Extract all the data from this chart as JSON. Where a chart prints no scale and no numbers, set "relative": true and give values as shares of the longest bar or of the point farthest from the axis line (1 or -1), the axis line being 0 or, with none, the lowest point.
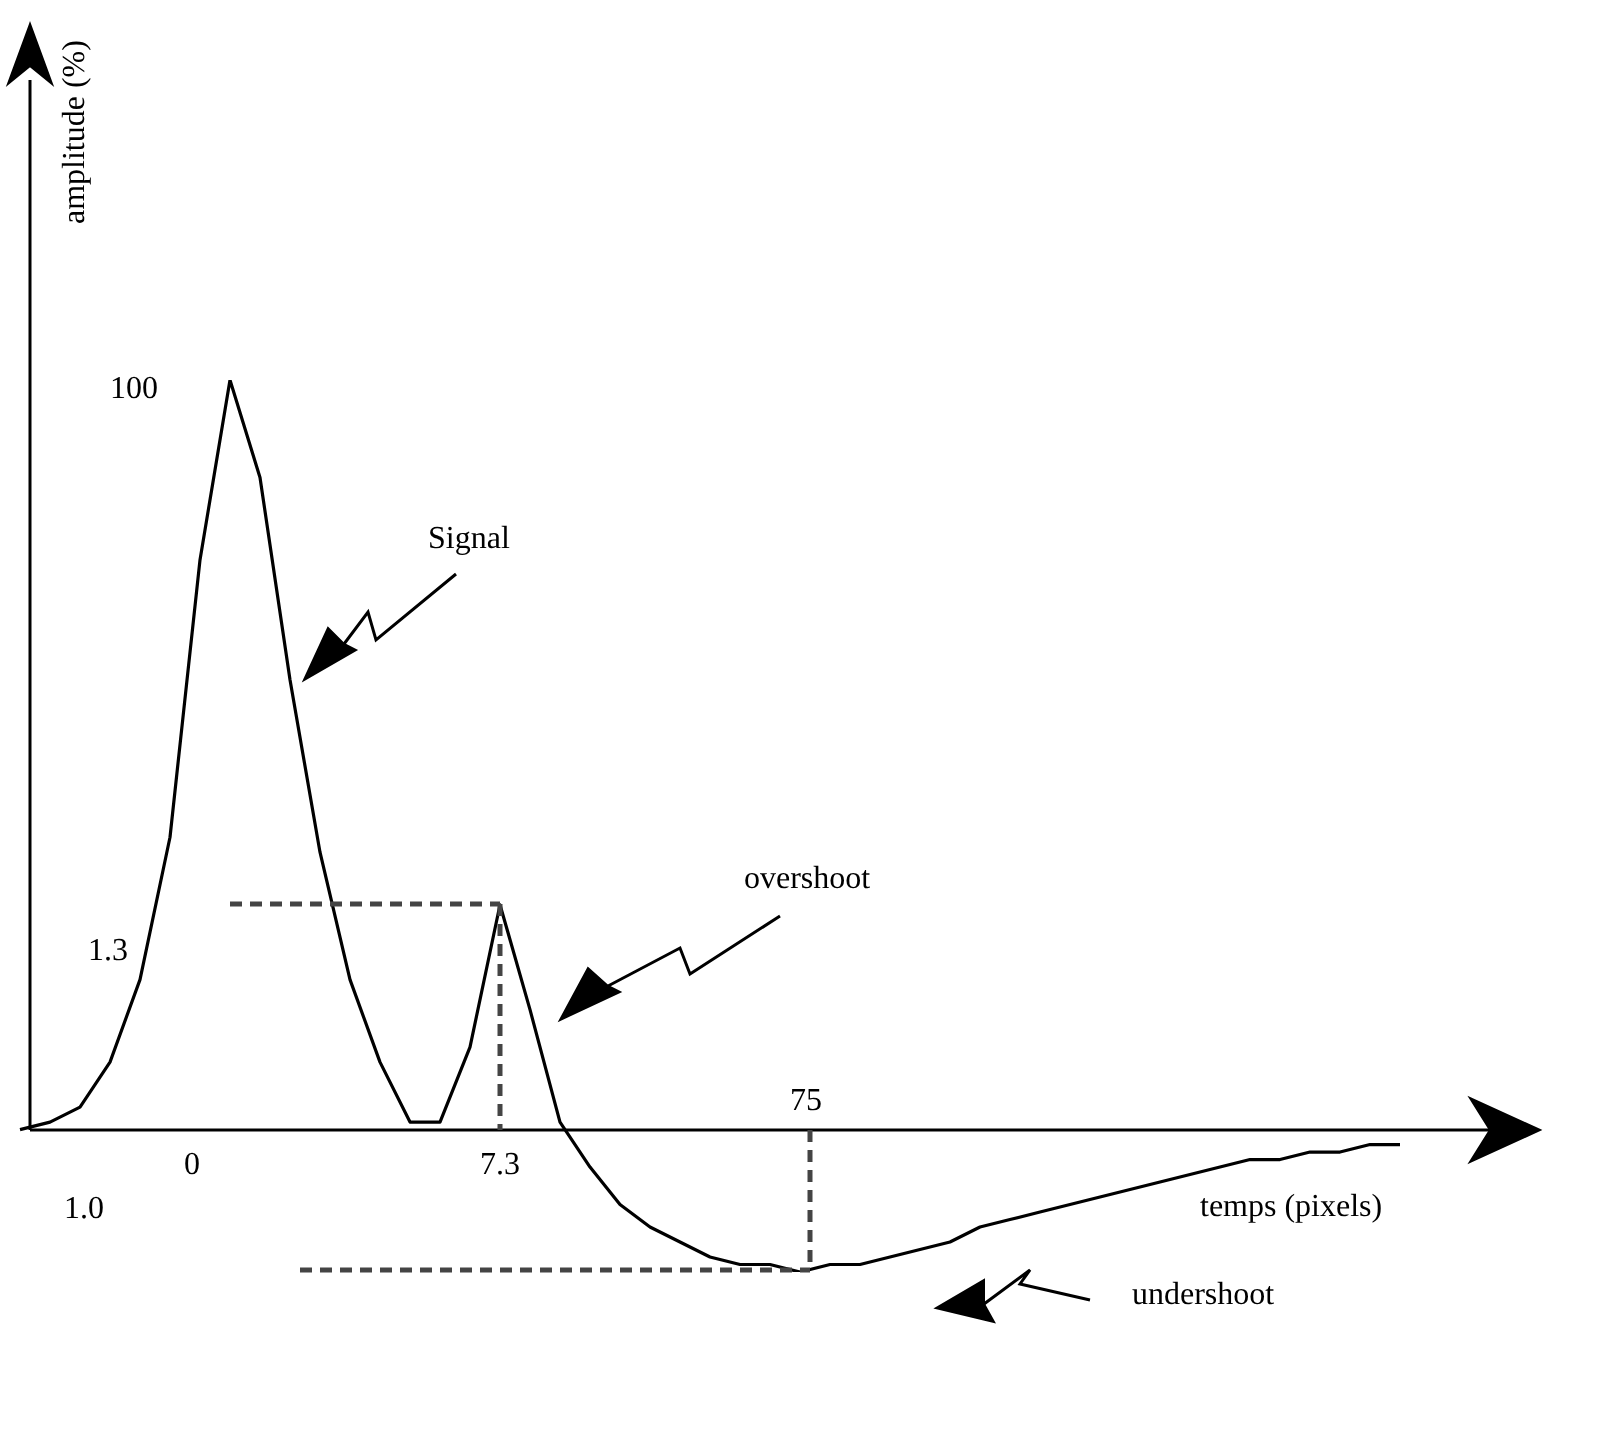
{
  "chart_data": {
    "type": "line",
    "relative": true,
    "xlabel": "temps (pixels)",
    "ylabel": "amplitude (%)",
    "categories": [
      null,
      null,
      null,
      null,
      null,
      null,
      null,
      null,
      null,
      null,
      null,
      null,
      null,
      null,
      null,
      null,
      null,
      null,
      null,
      null,
      null,
      null,
      null,
      null,
      null,
      null,
      null,
      null,
      null,
      null,
      null,
      null,
      null,
      null,
      null,
      null,
      null,
      null,
      null,
      null,
      null,
      null,
      null,
      null,
      null,
      null,
      null
    ],
    "series": [
      {
        "color": "#000000",
        "values": [
          0,
          0.01,
          0.03,
          0.09,
          0.2,
          0.39,
          0.76,
          1,
          0.87,
          0.6,
          0.37,
          0.2,
          0.09,
          0.01,
          0.01,
          0.11,
          0.3,
          0.16,
          0.01,
          -0.05,
          -0.1,
          -0.13,
          -0.15,
          -0.17,
          -0.18,
          -0.18,
          -0.19,
          -0.18,
          -0.18,
          -0.17,
          -0.16,
          -0.15,
          -0.13,
          -0.12,
          -0.11,
          -0.1,
          -0.09,
          -0.08,
          -0.07,
          -0.06,
          -0.05,
          -0.04,
          -0.04,
          -0.03,
          -0.03,
          -0.02,
          -0.02
        ]
      }
    ],
    "annotations": [
      "Signal",
      "overshoot",
      "undershoot",
      "100",
      "1.3",
      "1.0",
      "0",
      "7.3",
      "75"
    ],
    "grid": false,
    "legend": false,
    "marker": "none",
    "line_style": "solid"
  }
}
